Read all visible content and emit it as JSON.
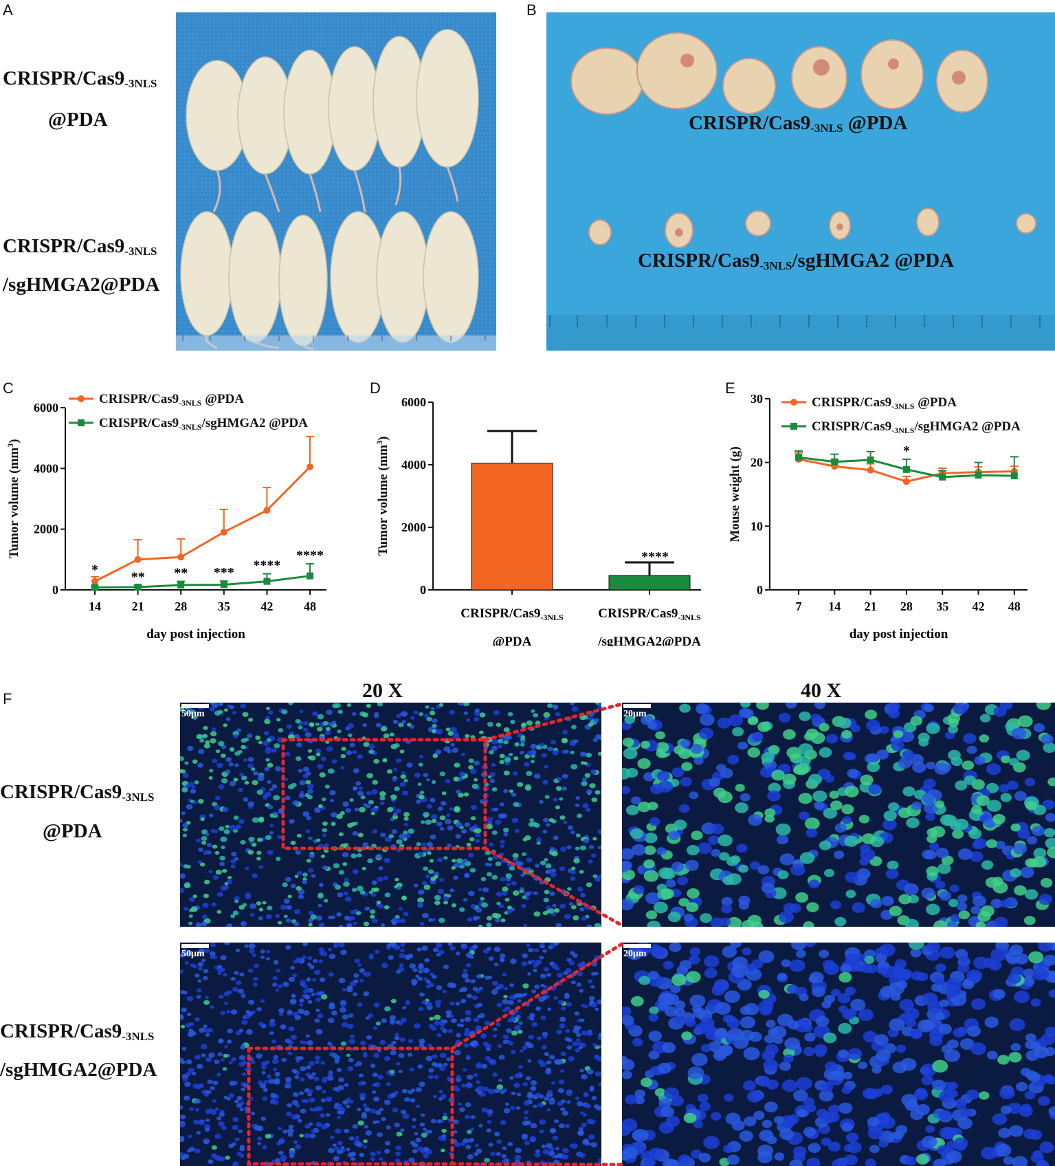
{
  "panels": {
    "A": {
      "letter": "A",
      "group_top_line1": "CRISPR/Cas9",
      "group_top_sub": "-3NLS",
      "group_top_line2": "@PDA",
      "group_bottom_line1": "CRISPR/Cas9",
      "group_bottom_sub": "-3NLS",
      "group_bottom_line2": "/sgHMGA2@PDA"
    },
    "B": {
      "letter": "B",
      "label_top_main": "CRISPR/Cas9",
      "label_top_sub": "-3NLS",
      "label_top_tail": " @PDA",
      "label_bottom_main": "CRISPR/Cas9",
      "label_bottom_sub": "-3NLS",
      "label_bottom_tail": "/sgHMGA2 @PDA"
    },
    "C": {
      "letter": "C"
    },
    "D": {
      "letter": "D"
    },
    "E": {
      "letter": "E"
    },
    "F": {
      "letter": "F",
      "mag_left": "20 X",
      "mag_right": "40 X",
      "scale_20x": "50μm",
      "scale_40x": "20μm",
      "row_top_line1": "CRISPR/Cas9",
      "row_top_sub": "-3NLS",
      "row_top_line2": "@PDA",
      "row_bottom_line1": "CRISPR/Cas9",
      "row_bottom_sub": "-3NLS",
      "row_bottom_line2": "/sgHMGA2@PDA"
    }
  },
  "colors": {
    "control": "#f26522",
    "treated": "#1a8a3c",
    "photo_bg": "#3aa6dc",
    "micro_bg": "#0a1a40"
  },
  "chart_data": [
    {
      "panel": "C",
      "type": "line",
      "xlabel": "day post injection",
      "ylabel": "Tumor volume (mm3)",
      "x": [
        14,
        21,
        28,
        35,
        42,
        48
      ],
      "ylim": [
        0,
        6000
      ],
      "yticks": [
        0,
        2000,
        4000,
        6000
      ],
      "legend_position": "top-left",
      "series": [
        {
          "name": "CRISPR/Cas9-3NLS @PDA",
          "color": "#f26522",
          "values": [
            280,
            1000,
            1080,
            1900,
            2620,
            4050
          ],
          "error": [
            150,
            650,
            600,
            750,
            750,
            1000
          ]
        },
        {
          "name": "CRISPR/Cas9-3NLS/sgHMGA2 @PDA",
          "color": "#1a8a3c",
          "values": [
            80,
            90,
            160,
            170,
            280,
            460
          ],
          "error": [
            40,
            60,
            120,
            120,
            250,
            400
          ]
        }
      ],
      "annotations": [
        "*",
        "**",
        "**",
        "***",
        "****",
        "****"
      ]
    },
    {
      "panel": "D",
      "type": "bar",
      "ylabel": "Tumor volume (mm3)",
      "ylim": [
        0,
        6000
      ],
      "yticks": [
        0,
        2000,
        4000,
        6000
      ],
      "categories": [
        "CRISPR/Cas9-3NLS @PDA",
        "CRISPR/Cas9-3NLS /sgHMGA2@PDA"
      ],
      "category_line1": [
        "CRISPR/Cas9",
        "CRISPR/Cas9"
      ],
      "category_sub": [
        "-3NLS",
        "-3NLS"
      ],
      "category_line2": [
        "@PDA",
        "/sgHMGA2@PDA"
      ],
      "values": [
        4050,
        460
      ],
      "error": [
        1030,
        420
      ],
      "colors": [
        "#f26522",
        "#1a8a3c"
      ],
      "annotations": [
        "",
        "****"
      ]
    },
    {
      "panel": "E",
      "type": "line",
      "xlabel": "day post injection",
      "ylabel": "Mouse weight (g)",
      "x": [
        7,
        14,
        21,
        28,
        35,
        42,
        48
      ],
      "ylim": [
        0,
        30
      ],
      "yticks": [
        0,
        10,
        20,
        30
      ],
      "legend_position": "top-right",
      "series": [
        {
          "name": "CRISPR/Cas9-3NLS @PDA",
          "color": "#f26522",
          "values": [
            20.5,
            19.4,
            18.8,
            17.0,
            18.3,
            18.5,
            18.6
          ],
          "error": [
            1.0,
            1.0,
            1.0,
            0.8,
            0.8,
            0.8,
            0.8
          ]
        },
        {
          "name": "CRISPR/Cas9-3NLS/sgHMGA2 @PDA",
          "color": "#1a8a3c",
          "values": [
            20.8,
            20.1,
            20.4,
            18.9,
            17.7,
            18.0,
            17.9
          ],
          "error": [
            1.0,
            1.2,
            1.3,
            1.6,
            1.0,
            2.0,
            3.0
          ]
        }
      ],
      "annotations": [
        "",
        "",
        "",
        "*",
        "",
        "",
        ""
      ]
    }
  ]
}
